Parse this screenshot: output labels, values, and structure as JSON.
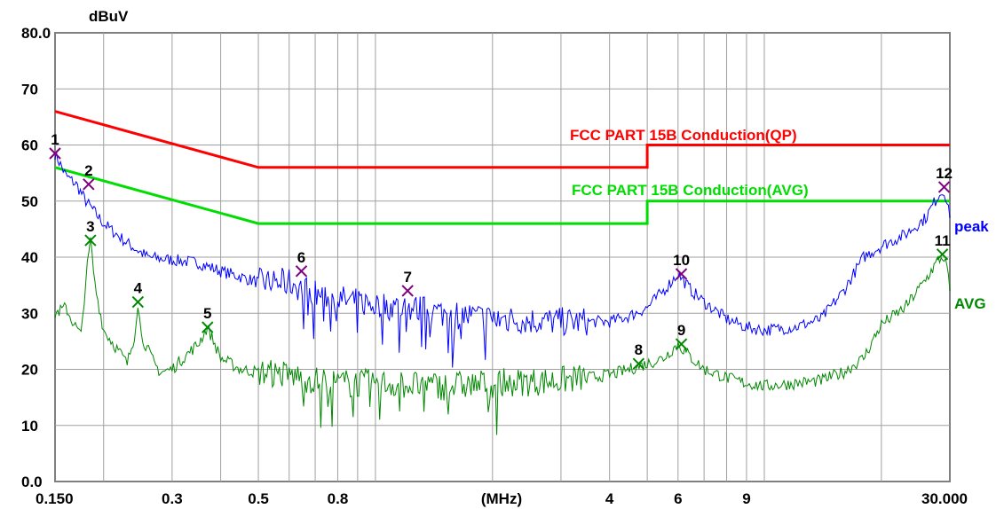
{
  "chart_data": {
    "type": "line",
    "xscale": "log",
    "xlim": [
      0.15,
      30.0
    ],
    "ylim": [
      0.0,
      80.0
    ],
    "grid": true,
    "yunit": "dBuV",
    "xlabel": "(MHz)",
    "x_tick_labels": [
      {
        "x": 0.15,
        "label": "0.150"
      },
      {
        "x": 0.3,
        "label": "0.3"
      },
      {
        "x": 0.5,
        "label": "0.5"
      },
      {
        "x": 0.8,
        "label": "0.8"
      },
      {
        "x": 4,
        "label": "4"
      },
      {
        "x": 6,
        "label": "6"
      },
      {
        "x": 9,
        "label": "9"
      },
      {
        "x": 30.0,
        "label": "30.000"
      }
    ],
    "y_tick_labels": [
      {
        "y": 0,
        "label": "0.0"
      },
      {
        "y": 10,
        "label": "10"
      },
      {
        "y": 20,
        "label": "20"
      },
      {
        "y": 30,
        "label": "30"
      },
      {
        "y": 40,
        "label": "40"
      },
      {
        "y": 50,
        "label": "50"
      },
      {
        "y": 60,
        "label": "60"
      },
      {
        "y": 70,
        "label": "70"
      },
      {
        "y": 80,
        "label": "80.0"
      }
    ],
    "limit_lines": [
      {
        "name": "FCC PART 15B  Conduction(QP)",
        "color": "#ff0000",
        "points": [
          [
            0.15,
            66
          ],
          [
            0.5,
            56
          ],
          [
            5.0,
            56
          ],
          [
            5.0,
            60
          ],
          [
            30.0,
            60
          ]
        ]
      },
      {
        "name": "FCC PART 15B Conduction(AVG)",
        "color": "#00dd00",
        "points": [
          [
            0.15,
            56
          ],
          [
            0.5,
            46
          ],
          [
            5.0,
            46
          ],
          [
            5.0,
            50
          ],
          [
            30.0,
            50
          ]
        ]
      }
    ],
    "series": [
      {
        "name": "peak",
        "color": "#0000ff",
        "points": [
          [
            0.15,
            58.5
          ],
          [
            0.16,
            54.5
          ],
          [
            0.17,
            53.0
          ],
          [
            0.18,
            50.0
          ],
          [
            0.2,
            46.0
          ],
          [
            0.23,
            42.5
          ],
          [
            0.26,
            40.0
          ],
          [
            0.3,
            39.5
          ],
          [
            0.35,
            39.0
          ],
          [
            0.4,
            37.5
          ],
          [
            0.45,
            36.5
          ],
          [
            0.5,
            35.5
          ],
          [
            0.6,
            35.5
          ],
          [
            0.7,
            33.5
          ],
          [
            0.8,
            32.5
          ],
          [
            1.0,
            31.5
          ],
          [
            1.2,
            31.0
          ],
          [
            1.5,
            30.0
          ],
          [
            2.0,
            29.0
          ],
          [
            3.0,
            28.5
          ],
          [
            4.0,
            28.5
          ],
          [
            4.5,
            29.5
          ],
          [
            5.0,
            31.0
          ],
          [
            5.5,
            34.0
          ],
          [
            6.0,
            37.0
          ],
          [
            6.5,
            34.0
          ],
          [
            7.0,
            32.0
          ],
          [
            8.0,
            29.0
          ],
          [
            9.0,
            27.5
          ],
          [
            10.0,
            27.0
          ],
          [
            12.0,
            27.5
          ],
          [
            14.0,
            29.0
          ],
          [
            16.0,
            34.0
          ],
          [
            18.0,
            40.0
          ],
          [
            20.0,
            42.0
          ],
          [
            23.0,
            44.0
          ],
          [
            26.0,
            47.0
          ],
          [
            28.0,
            51.0
          ],
          [
            29.0,
            52.0
          ],
          [
            30.0,
            47.0
          ]
        ]
      },
      {
        "name": "AVG",
        "color": "#008800",
        "points": [
          [
            0.15,
            30.0
          ],
          [
            0.16,
            31.0
          ],
          [
            0.165,
            29.0
          ],
          [
            0.175,
            26.0
          ],
          [
            0.18,
            36.0
          ],
          [
            0.185,
            43.0
          ],
          [
            0.19,
            35.0
          ],
          [
            0.2,
            27.0
          ],
          [
            0.22,
            23.0
          ],
          [
            0.23,
            21.0
          ],
          [
            0.24,
            26.0
          ],
          [
            0.245,
            32.0
          ],
          [
            0.25,
            26.0
          ],
          [
            0.27,
            21.0
          ],
          [
            0.28,
            19.5
          ],
          [
            0.3,
            20.0
          ],
          [
            0.32,
            22.0
          ],
          [
            0.35,
            24.5
          ],
          [
            0.37,
            27.5
          ],
          [
            0.4,
            22.0
          ],
          [
            0.45,
            20.0
          ],
          [
            0.5,
            19.5
          ],
          [
            0.6,
            19.0
          ],
          [
            0.7,
            18.0
          ],
          [
            0.8,
            17.5
          ],
          [
            1.0,
            17.5
          ],
          [
            1.5,
            17.0
          ],
          [
            2.0,
            17.5
          ],
          [
            3.0,
            18.0
          ],
          [
            4.0,
            19.0
          ],
          [
            4.5,
            20.0
          ],
          [
            5.0,
            21.0
          ],
          [
            5.5,
            22.0
          ],
          [
            6.0,
            24.5
          ],
          [
            6.5,
            22.0
          ],
          [
            7.0,
            20.0
          ],
          [
            8.0,
            18.5
          ],
          [
            9.0,
            17.5
          ],
          [
            10.0,
            17.0
          ],
          [
            12.0,
            17.5
          ],
          [
            14.0,
            18.0
          ],
          [
            16.0,
            19.5
          ],
          [
            18.0,
            22.0
          ],
          [
            20.0,
            28.0
          ],
          [
            23.0,
            31.0
          ],
          [
            26.0,
            36.0
          ],
          [
            28.0,
            39.5
          ],
          [
            29.0,
            40.0
          ],
          [
            29.5,
            38.0
          ],
          [
            30.0,
            34.0
          ]
        ]
      }
    ],
    "markers": [
      {
        "id": "1",
        "x": 0.15,
        "y": 58.5,
        "color": "#800080"
      },
      {
        "id": "2",
        "x": 0.183,
        "y": 53.0,
        "color": "#800080"
      },
      {
        "id": "3",
        "x": 0.185,
        "y": 43.0,
        "color": "#008800"
      },
      {
        "id": "4",
        "x": 0.245,
        "y": 32.0,
        "color": "#008800"
      },
      {
        "id": "5",
        "x": 0.37,
        "y": 27.5,
        "color": "#008800"
      },
      {
        "id": "6",
        "x": 0.645,
        "y": 37.5,
        "color": "#800080"
      },
      {
        "id": "7",
        "x": 1.21,
        "y": 34.0,
        "color": "#800080"
      },
      {
        "id": "8",
        "x": 4.75,
        "y": 21.0,
        "color": "#008800"
      },
      {
        "id": "9",
        "x": 6.12,
        "y": 24.5,
        "color": "#008800"
      },
      {
        "id": "10",
        "x": 6.12,
        "y": 37.0,
        "color": "#800080"
      },
      {
        "id": "11",
        "x": 28.7,
        "y": 40.5,
        "color": "#008800"
      },
      {
        "id": "12",
        "x": 29.0,
        "y": 52.5,
        "color": "#800080"
      }
    ]
  }
}
